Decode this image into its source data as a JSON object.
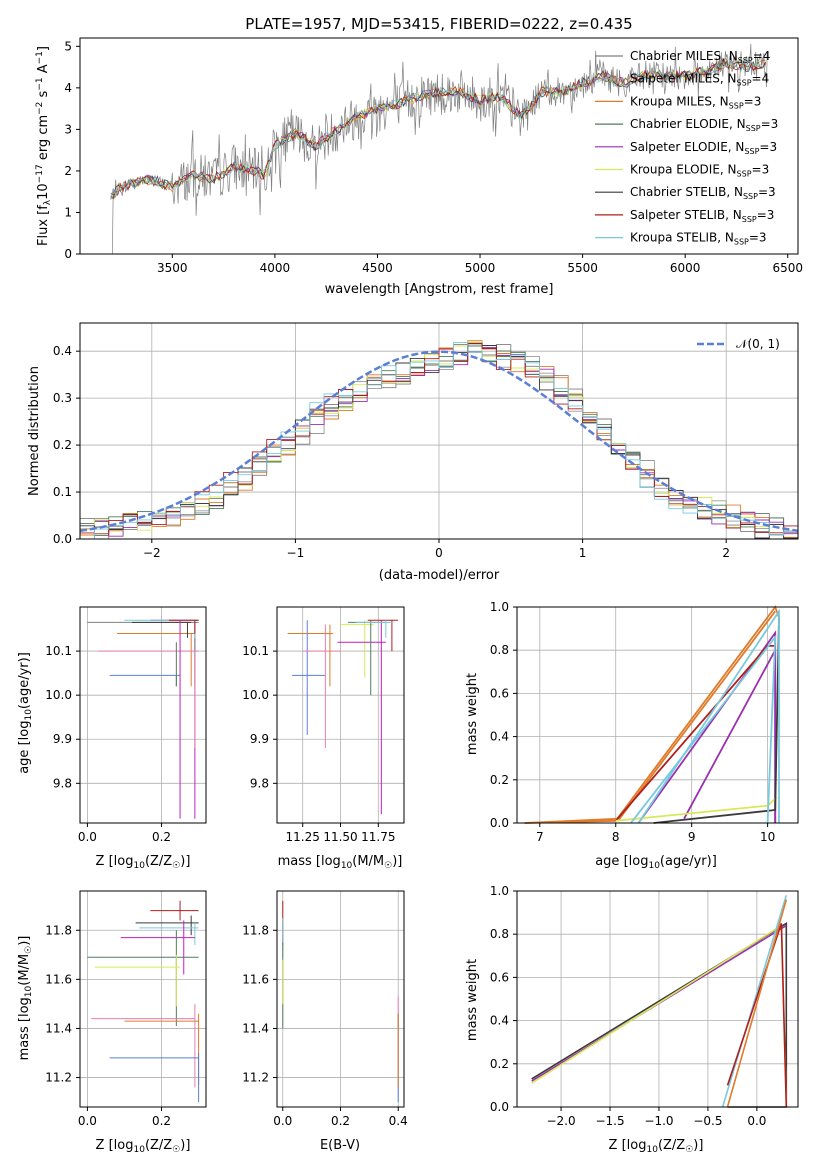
{
  "title": "PLATE=1957, MJD=53415, FIBERID=0222, z=0.435",
  "colors": {
    "chabrier_miles": "#7f7f7f",
    "salpeter_miles": "#9a9a9a",
    "kroupa_miles": "#e07b2a",
    "chabrier_elodie": "#4f7f5a",
    "salpeter_elodie": "#9a2fb0",
    "kroupa_elodie": "#d9e85a",
    "chabrier_stelib": "#3a3a3a",
    "salpeter_stelib": "#b01e1e",
    "kroupa_stelib": "#78c9dd",
    "blue": "#5b7fd6",
    "pink": "#e77fb1",
    "magenta": "#c21fc0",
    "green_pale": "#b7e57a"
  },
  "chart_data": [
    {
      "id": "spectrum",
      "type": "line",
      "title": "PLATE=1957, MJD=53415, FIBERID=0222, z=0.435",
      "xlabel": "wavelength [Angstrom, rest frame]",
      "ylabel": "Flux [f_λ 10^-17 erg cm^-2 s^-1 A^-1]",
      "xlim": [
        3050,
        6550
      ],
      "ylim": [
        0,
        5.2
      ],
      "xticks": [
        "3500",
        "4000",
        "4500",
        "5000",
        "5500",
        "6000",
        "6500"
      ],
      "yticks": [
        "0",
        "1",
        "2",
        "3",
        "4",
        "5"
      ],
      "legend": [
        "Chabrier MILES, N_SSP=4",
        "Salpeter MILES, N_SSP=4",
        "Kroupa MILES, N_SSP=3",
        "Chabrier ELODIE, N_SSP=3",
        "Salpeter ELODIE, N_SSP=3",
        "Kroupa ELODIE, N_SSP=3",
        "Chabrier STELIB, N_SSP=3",
        "Salpeter STELIB, N_SSP=3",
        "Kroupa STELIB, N_SSP=3"
      ],
      "legend_placement": "top-right",
      "model_continuum": {
        "x": [
          3200,
          3250,
          3300,
          3400,
          3500,
          3600,
          3700,
          3800,
          3900,
          3950,
          4000,
          4100,
          4200,
          4300,
          4400,
          4500,
          4600,
          4700,
          4800,
          4900,
          5000,
          5100,
          5200,
          5300,
          5400,
          5500,
          5600,
          5700,
          5800,
          5900,
          6000,
          6100,
          6200,
          6300,
          6400
        ],
        "y": [
          1.4,
          1.6,
          1.7,
          1.8,
          1.6,
          1.9,
          1.8,
          2.1,
          2.0,
          1.9,
          2.6,
          2.9,
          2.6,
          3.0,
          3.3,
          3.5,
          3.6,
          3.8,
          3.9,
          3.9,
          3.7,
          3.8,
          3.3,
          3.9,
          3.9,
          4.1,
          4.3,
          4.1,
          4.3,
          4.3,
          4.3,
          4.4,
          4.6,
          4.5,
          4.6
        ]
      }
    },
    {
      "id": "residuals",
      "type": "line",
      "xlabel": "(data-model)/error",
      "ylabel": "Normed distribution",
      "xlim": [
        -2.5,
        2.5
      ],
      "ylim": [
        0,
        0.46
      ],
      "xticks": [
        "−2",
        "−1",
        "0",
        "1",
        "2"
      ],
      "yticks": [
        "0.0",
        "0.1",
        "0.2",
        "0.3",
        "0.4"
      ],
      "legend": [
        "N(0,1)"
      ],
      "legend_placement": "top-right",
      "gaussian": {
        "mu": 0,
        "sigma": 1
      },
      "hist_approx": {
        "x": [
          -2.4,
          -2.2,
          -2.0,
          -1.8,
          -1.6,
          -1.4,
          -1.2,
          -1.0,
          -0.8,
          -0.6,
          -0.4,
          -0.2,
          0.0,
          0.2,
          0.4,
          0.6,
          0.8,
          1.0,
          1.2,
          1.4,
          1.6,
          1.8,
          2.0,
          2.2,
          2.4
        ],
        "y": [
          0.02,
          0.03,
          0.04,
          0.06,
          0.08,
          0.12,
          0.17,
          0.22,
          0.27,
          0.31,
          0.34,
          0.36,
          0.38,
          0.4,
          0.39,
          0.37,
          0.33,
          0.27,
          0.21,
          0.15,
          0.1,
          0.07,
          0.05,
          0.03,
          0.02
        ]
      }
    },
    {
      "id": "age_vs_Z",
      "type": "scatter",
      "xlabel": "Z [log10(Z/Z☉)]",
      "ylabel": "age  [log10(age/yr)]",
      "xlim": [
        -0.02,
        0.32
      ],
      "ylim": [
        9.71,
        10.2
      ],
      "xticks": [
        "0.0",
        "0.2"
      ],
      "yticks": [
        "9.8",
        "9.9",
        "10.0",
        "10.1"
      ]
    },
    {
      "id": "age_vs_mass",
      "type": "scatter",
      "xlabel": "mass [log10(M/M☉)]",
      "ylabel": "",
      "xlim": [
        11.08,
        11.92
      ],
      "ylim": [
        9.71,
        10.2
      ],
      "xticks": [
        "11.25",
        "11.50",
        "11.75"
      ],
      "yticks": [
        "9.8",
        "9.9",
        "10.0",
        "10.1"
      ]
    },
    {
      "id": "massweight_vs_age",
      "type": "line",
      "xlabel": "age  [log10(age/yr)]",
      "ylabel": "mass weight",
      "xlim": [
        6.7,
        10.4
      ],
      "ylim": [
        0,
        1.0
      ],
      "xticks": [
        "7",
        "8",
        "9",
        "10"
      ],
      "yticks": [
        "0.0",
        "0.2",
        "0.4",
        "0.6",
        "0.8",
        "1.0"
      ]
    },
    {
      "id": "mass_vs_Z",
      "type": "scatter",
      "xlabel": "Z [log10(Z/Z☉)]",
      "ylabel": "mass [log10(M/M☉)]",
      "xlim": [
        -0.02,
        0.32
      ],
      "ylim": [
        11.08,
        11.96
      ],
      "xticks": [
        "0.0",
        "0.2"
      ],
      "yticks": [
        "11.2",
        "11.4",
        "11.6",
        "11.8"
      ]
    },
    {
      "id": "mass_vs_ebv",
      "type": "scatter",
      "xlabel": "E(B-V)",
      "ylabel": "",
      "xlim": [
        -0.02,
        0.42
      ],
      "ylim": [
        11.08,
        11.96
      ],
      "xticks": [
        "0.0",
        "0.2",
        "0.4"
      ],
      "yticks": [
        "11.2",
        "11.4",
        "11.6",
        "11.8"
      ]
    },
    {
      "id": "massweight_vs_Z",
      "type": "line",
      "xlabel": "Z [log10(Z/Z☉)]",
      "ylabel": "mass weight",
      "xlim": [
        -2.45,
        0.42
      ],
      "ylim": [
        0,
        1.0
      ],
      "xticks": [
        "−2.0",
        "−1.5",
        "−1.0",
        "−0.5",
        "0.0"
      ],
      "yticks": [
        "0.0",
        "0.2",
        "0.4",
        "0.6",
        "0.8",
        "1.0"
      ]
    }
  ]
}
